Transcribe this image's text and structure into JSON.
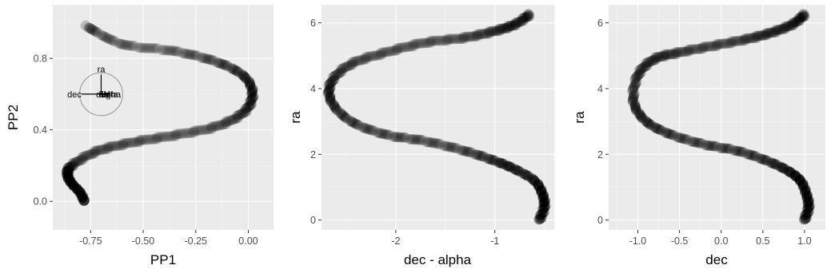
{
  "chart_data": [
    {
      "type": "scatter",
      "xlabel": "PP1",
      "ylabel": "PP2",
      "xlim": [
        -0.93,
        0.12
      ],
      "ylim": [
        -0.16,
        1.1
      ],
      "xticks": [
        -0.75,
        -0.5,
        -0.25,
        0.0
      ],
      "xtick_labels": [
        "-0.75",
        "-0.50",
        "-0.25",
        "0.00"
      ],
      "yticks": [
        0.0,
        0.4,
        0.8
      ],
      "ytick_labels": [
        "0.0",
        "0.4",
        "0.8"
      ],
      "grid": true,
      "series": [
        {
          "x": [
            -0.78,
            -0.8,
            -0.84,
            -0.86,
            -0.84,
            -0.72,
            -0.55,
            -0.35,
            -0.15,
            -0.02,
            0.02,
            -0.02,
            -0.15,
            -0.35,
            -0.6,
            -0.77
          ],
          "y": [
            0.0,
            0.05,
            0.1,
            0.15,
            0.2,
            0.28,
            0.33,
            0.37,
            0.42,
            0.5,
            0.6,
            0.7,
            0.78,
            0.84,
            0.88,
            0.98
          ]
        }
      ],
      "axis_circle": {
        "center": [
          -0.7,
          0.6
        ],
        "radius": 0.12,
        "arrows": [
          {
            "label": "ra",
            "dx": 0.0,
            "dy": 0.11
          },
          {
            "label": "dec",
            "dx": -0.11,
            "dy": 0.0
          },
          {
            "label": "dist",
            "dx": 0.01,
            "dy": 0.0
          },
          {
            "label": "alpha",
            "dx": 0.05,
            "dy": 0.0
          },
          {
            "label": "delta",
            "dx": 0.04,
            "dy": 0.0
          },
          {
            "label": "obj",
            "dx": 0.02,
            "dy": 0.0
          }
        ]
      }
    },
    {
      "type": "scatter",
      "xlabel": "dec - alpha",
      "ylabel": "ra",
      "xlim": [
        -2.75,
        -0.4
      ],
      "ylim": [
        -0.3,
        6.55
      ],
      "xticks": [
        -2,
        -1
      ],
      "xtick_labels": [
        "-2",
        "-1"
      ],
      "yticks": [
        0,
        2,
        4,
        6
      ],
      "ytick_labels": [
        "0",
        "2",
        "4",
        "6"
      ],
      "grid": true,
      "series": [
        {
          "x": [
            -0.55,
            -0.5,
            -0.52,
            -0.6,
            -0.8,
            -1.0,
            -1.3,
            -1.7,
            -2.1,
            -2.45,
            -2.65,
            -2.65,
            -2.45,
            -2.1,
            -1.7,
            -1.3,
            -1.0,
            -0.8,
            -0.65
          ],
          "y": [
            0.0,
            0.4,
            0.8,
            1.2,
            1.55,
            1.8,
            2.1,
            2.4,
            2.6,
            3.0,
            3.6,
            4.2,
            4.75,
            5.1,
            5.4,
            5.55,
            5.75,
            5.95,
            6.25
          ]
        }
      ]
    },
    {
      "type": "scatter",
      "xlabel": "dec",
      "ylabel": "ra",
      "xlim": [
        -1.35,
        1.25
      ],
      "ylim": [
        -0.3,
        6.55
      ],
      "xticks": [
        -1.0,
        -0.5,
        0.0,
        0.5,
        1.0
      ],
      "xtick_labels": [
        "-1.0",
        "-0.5",
        "0.0",
        "0.5",
        "1.0"
      ],
      "yticks": [
        0,
        2,
        4,
        6
      ],
      "ytick_labels": [
        "0",
        "2",
        "4",
        "6"
      ],
      "grid": true,
      "series": [
        {
          "x": [
            1.0,
            1.05,
            1.02,
            0.95,
            0.8,
            0.55,
            0.2,
            -0.2,
            -0.6,
            -0.9,
            -1.05,
            -1.0,
            -0.8,
            -0.5,
            -0.1,
            0.3,
            0.6,
            0.85,
            1.0
          ],
          "y": [
            0.0,
            0.4,
            0.8,
            1.2,
            1.5,
            1.8,
            2.1,
            2.3,
            2.6,
            3.0,
            3.6,
            4.4,
            4.9,
            5.1,
            5.3,
            5.5,
            5.7,
            5.95,
            6.25
          ]
        }
      ]
    }
  ]
}
